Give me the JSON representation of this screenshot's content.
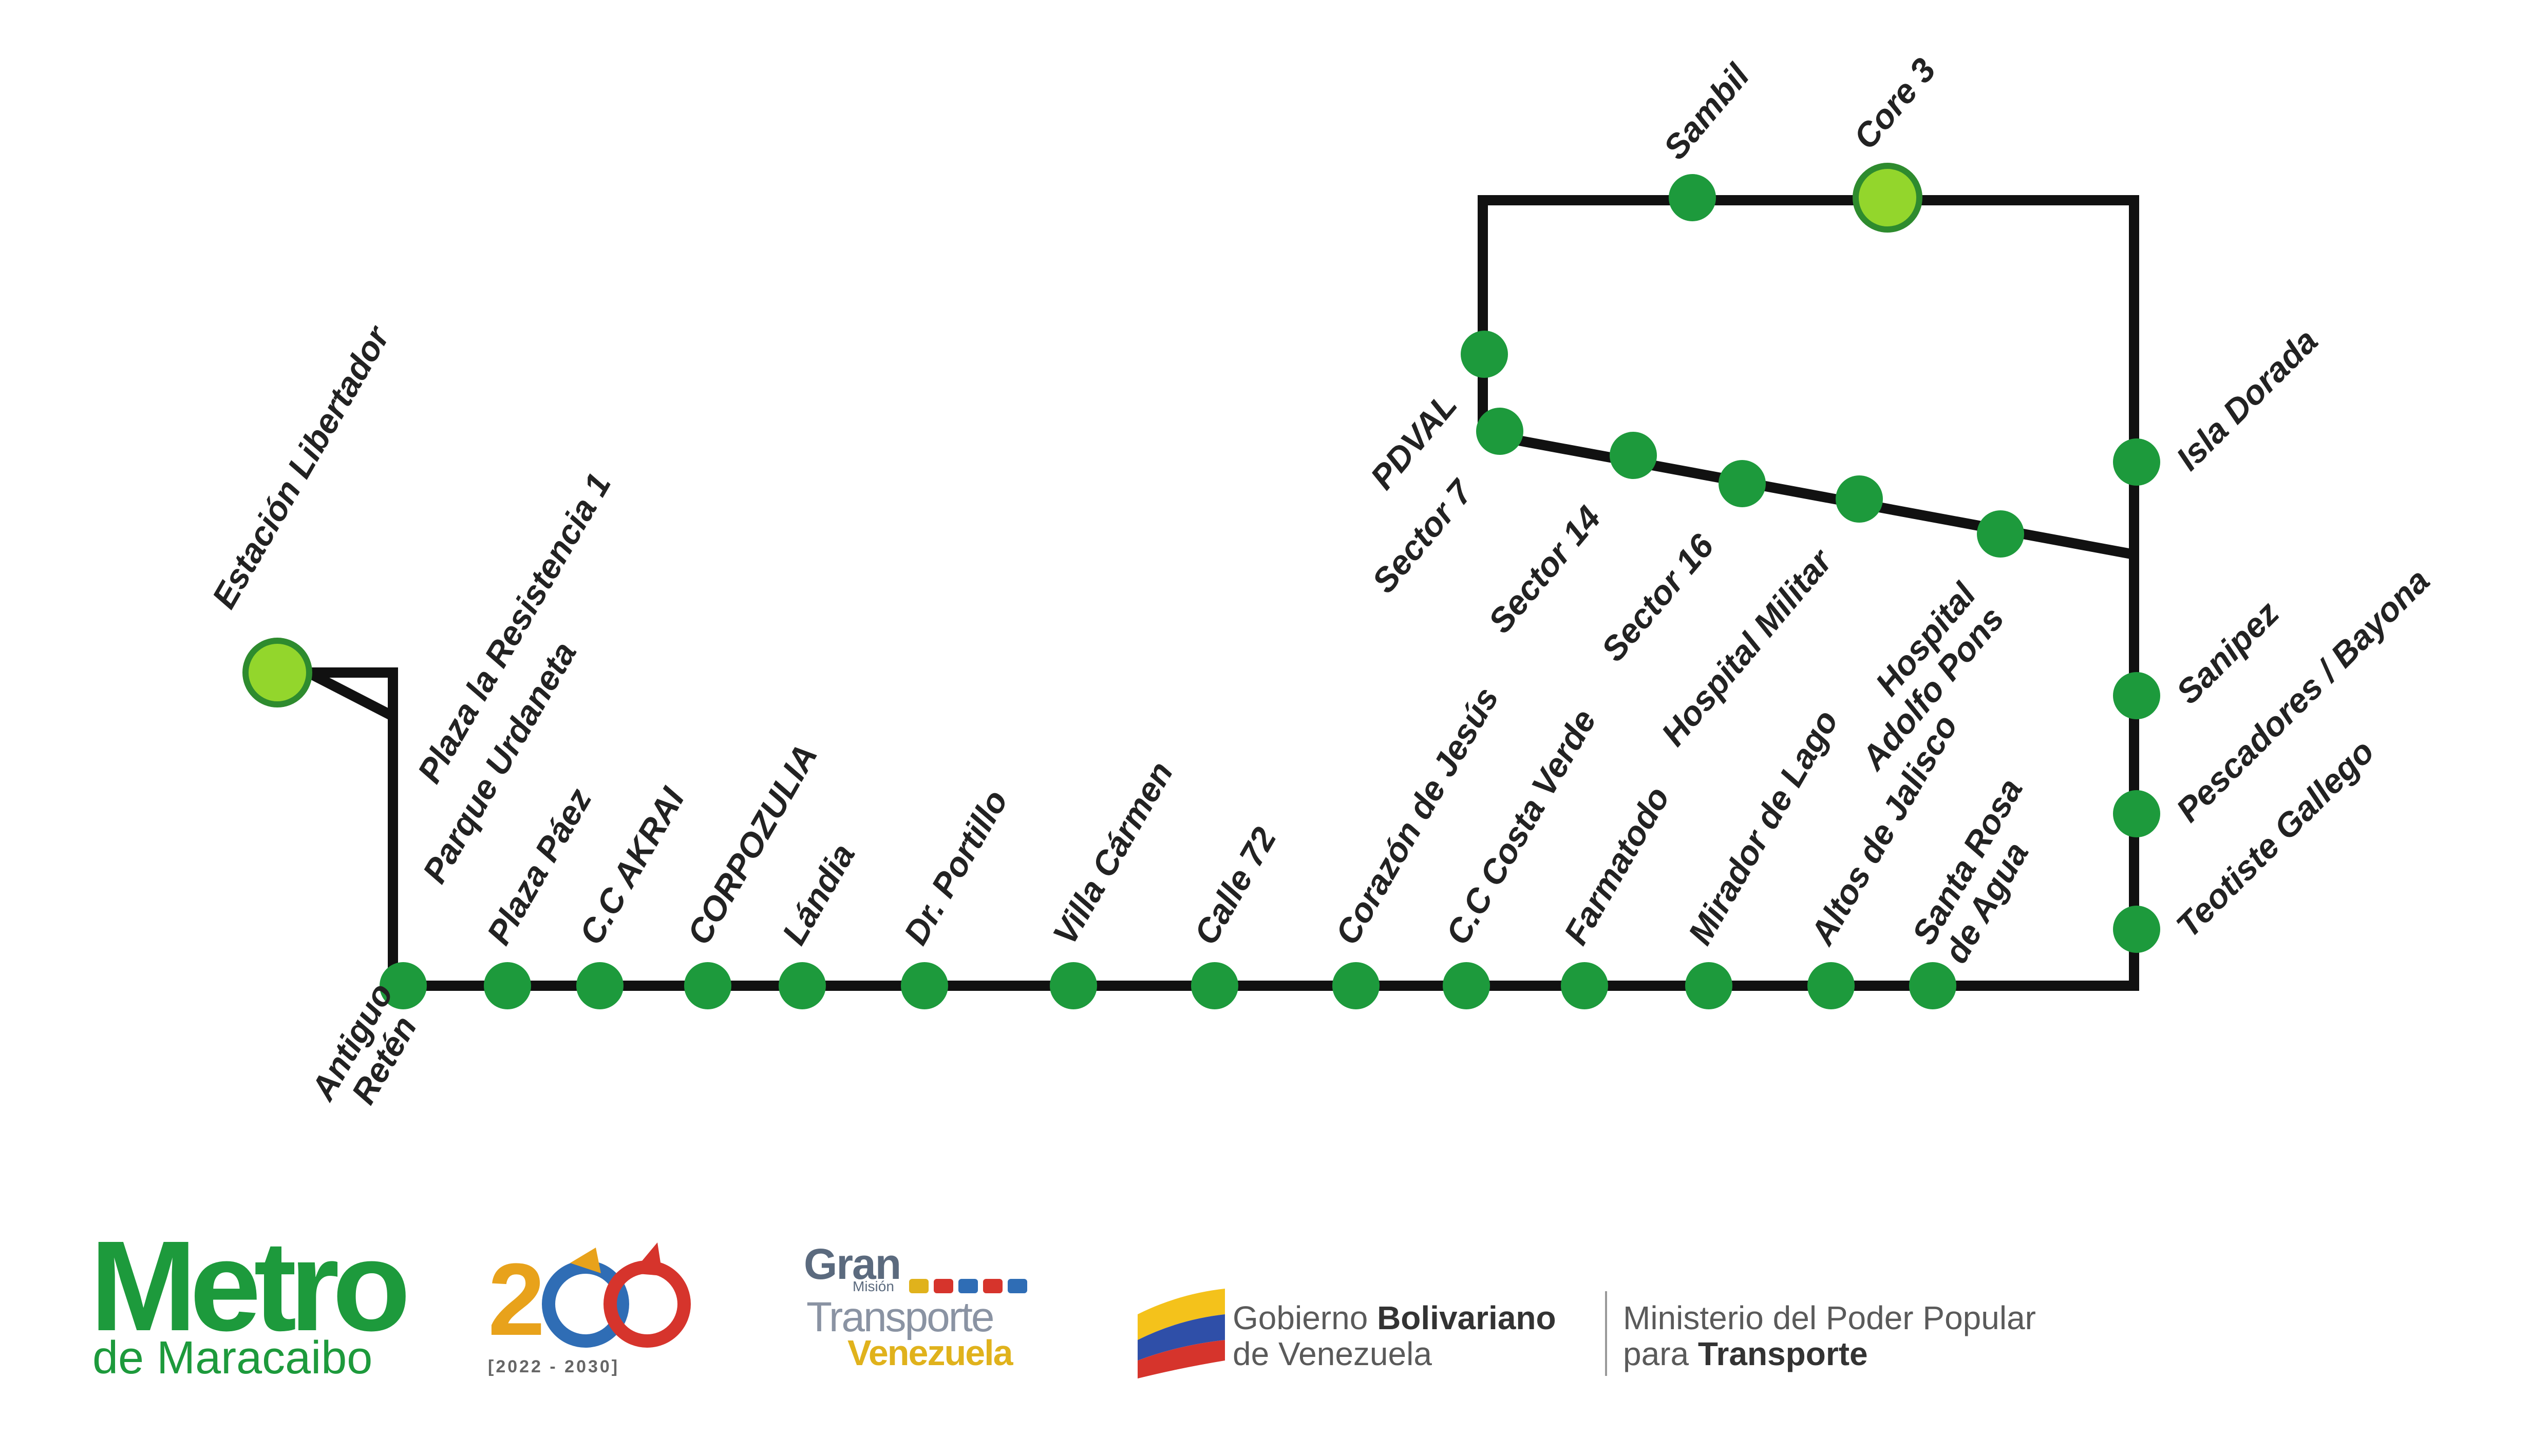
{
  "map": {
    "colors": {
      "line": "#111111",
      "station": "#1d9a3c",
      "terminal": "#93d62c",
      "terminal_outline": "#2e8b2e",
      "label": "#222222"
    },
    "stations": [
      {
        "id": "estacion-libertador",
        "name": "Estación Libertador",
        "type": "terminal"
      },
      {
        "id": "plaza-la-resistencia-1",
        "name": "Plaza la Resistencia 1",
        "type": "label-only"
      },
      {
        "id": "parque-urdaneta",
        "name": "Parque Urdaneta",
        "type": "label-only"
      },
      {
        "id": "antiguo-reten",
        "name": "Antiguo Retén",
        "type": "station"
      },
      {
        "id": "plaza-paez",
        "name": "Plaza Páez",
        "type": "station"
      },
      {
        "id": "cc-akrai",
        "name": "C.C AKRAI",
        "type": "station"
      },
      {
        "id": "corpozulia",
        "name": "CORPOZULIA",
        "type": "station"
      },
      {
        "id": "landia",
        "name": "Lándia",
        "type": "station"
      },
      {
        "id": "dr-portillo",
        "name": "Dr. Portillo",
        "type": "station"
      },
      {
        "id": "villa-carmen",
        "name": "Villa Cármen",
        "type": "station"
      },
      {
        "id": "calle-72",
        "name": "Calle 72",
        "type": "station"
      },
      {
        "id": "corazon-de-jesus",
        "name": "Corazón de Jesús",
        "type": "station"
      },
      {
        "id": "cc-costa-verde",
        "name": "C.C Costa Verde",
        "type": "station"
      },
      {
        "id": "farmatodo",
        "name": "Farmatodo",
        "type": "station"
      },
      {
        "id": "mirador-de-lago",
        "name": "Mirador de Lago",
        "type": "station"
      },
      {
        "id": "altos-de-jalisco",
        "name": "Altos de Jalisco",
        "type": "station"
      },
      {
        "id": "santa-rosa-de-agua",
        "name": "Santa Rosa de Agua",
        "type": "station"
      },
      {
        "id": "teotiste-gallego",
        "name": "Teotiste Gallego",
        "type": "station"
      },
      {
        "id": "pescadores-bayona",
        "name": "Pescadores / Bayona",
        "type": "station"
      },
      {
        "id": "sanipez",
        "name": "Sanipez",
        "type": "station"
      },
      {
        "id": "isla-dorada",
        "name": "Isla Dorada",
        "type": "station"
      },
      {
        "id": "core-3",
        "name": "Core 3",
        "type": "terminal"
      },
      {
        "id": "sambil",
        "name": "Sambil",
        "type": "station"
      },
      {
        "id": "pdval",
        "name": "PDVAL",
        "type": "station"
      },
      {
        "id": "sector-7",
        "name": "Sector 7",
        "type": "station"
      },
      {
        "id": "sector-14",
        "name": "Sector 14",
        "type": "station"
      },
      {
        "id": "sector-16",
        "name": "Sector 16",
        "type": "station"
      },
      {
        "id": "hospital-militar",
        "name": "Hospital Militar",
        "type": "station"
      },
      {
        "id": "hospital-adolfo-pons",
        "name": "Hospital Adolfo Pons",
        "type": "station"
      }
    ]
  },
  "footer": {
    "metro_logo": {
      "word": "Metro",
      "subtitle": "de Maracaibo",
      "color": "#1d9a3c"
    },
    "bicentenario_logo": {
      "years": "[2022 - 2030]"
    },
    "gran_mision_logo": {
      "line1": "Gran",
      "line2": "Misión",
      "line3": "Transporte",
      "line4": "Venezuela"
    },
    "gobierno": {
      "prefix": "Gobierno ",
      "bold": "Bolivariano",
      "line2": "de Venezuela"
    },
    "ministerio": {
      "line1": "Ministerio del Poder Popular",
      "prefix": "para ",
      "bold": "Transporte"
    }
  }
}
